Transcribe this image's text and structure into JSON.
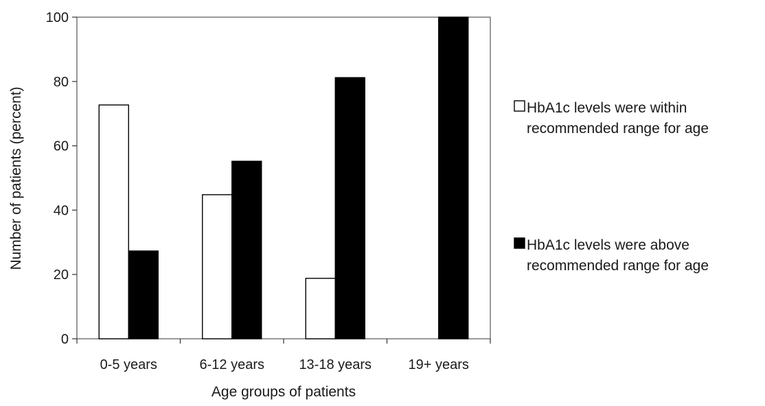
{
  "chart_data": {
    "type": "bar",
    "categories": [
      "0-5 years",
      "6-12 years",
      "13-18 years",
      "19+ years"
    ],
    "series": [
      {
        "name": "HbA1c levels were within recommended range for age",
        "legend_lines": [
          "HbA1c levels were within",
          "recommended range for age"
        ],
        "values": [
          72.7,
          44.8,
          18.8,
          0
        ],
        "fill": "#ffffff",
        "stroke": "#000000"
      },
      {
        "name": "HbA1c levels were above recommended range for age",
        "legend_lines": [
          "HbA1c levels were above",
          "recommended range for age"
        ],
        "values": [
          27.3,
          55.2,
          81.2,
          100
        ],
        "fill": "#000000",
        "stroke": "#000000"
      }
    ],
    "xlabel": "Age groups of patients",
    "ylabel": "Number of patients (percent)",
    "ylim": [
      0,
      100
    ],
    "yticks": [
      0,
      20,
      40,
      60,
      80,
      100
    ],
    "grid": false,
    "legend_position": "right"
  }
}
